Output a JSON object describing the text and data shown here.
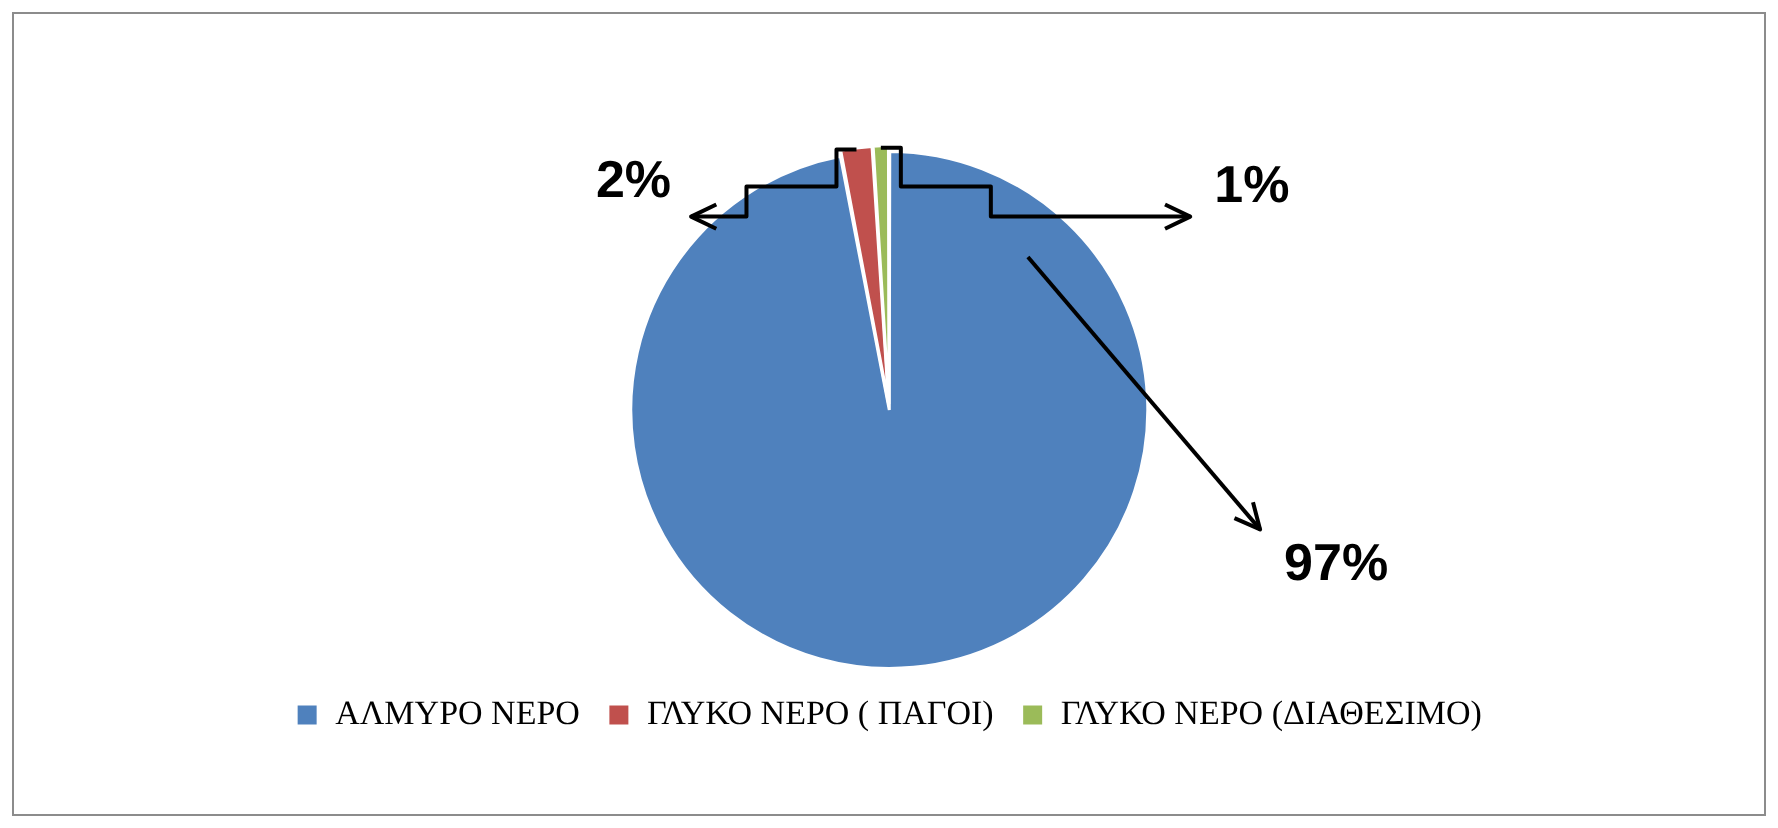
{
  "chart_data": {
    "type": "pie",
    "categories": [
      "ΑΛΜΥΡΟ ΝΕΡΟ",
      "ΓΛΥΚΟ ΝΕΡΟ ( ΠΑΓΟΙ)",
      "ΓΛΥΚΟ ΝΕΡΟ (ΔΙΑΘΕΣΙΜΟ)"
    ],
    "values": [
      97,
      2,
      1
    ],
    "colors": [
      "#4f81bd",
      "#c0504d",
      "#9bbb59"
    ],
    "value_labels": [
      "97%",
      "2%",
      "1%"
    ],
    "legend": "bottom"
  }
}
